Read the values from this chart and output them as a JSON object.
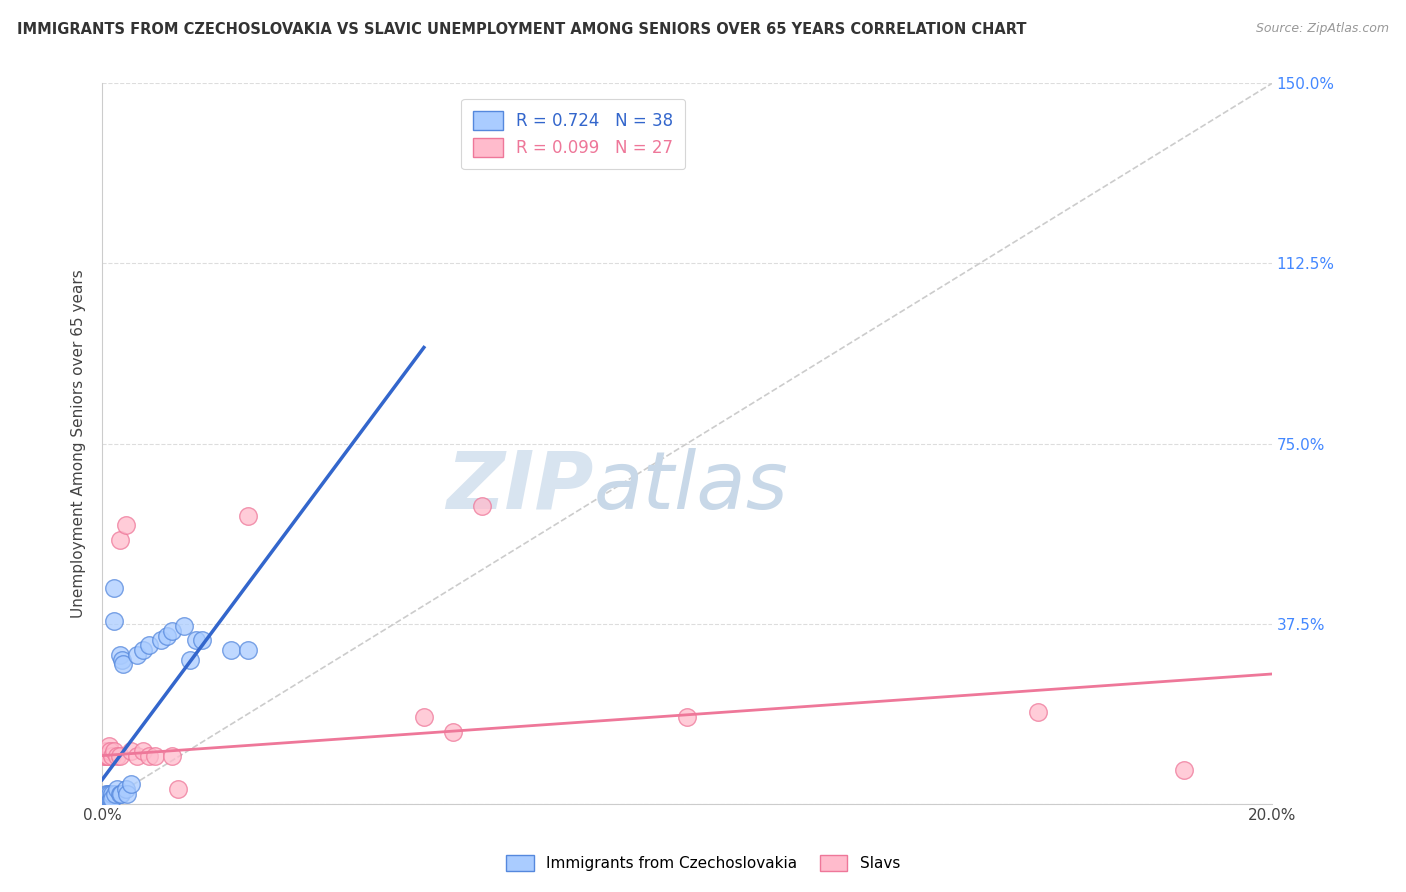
{
  "title": "IMMIGRANTS FROM CZECHOSLOVAKIA VS SLAVIC UNEMPLOYMENT AMONG SENIORS OVER 65 YEARS CORRELATION CHART",
  "source": "Source: ZipAtlas.com",
  "ylabel": "Unemployment Among Seniors over 65 years",
  "legend_label1": "Immigrants from Czechoslovakia",
  "legend_label2": "Slavs",
  "R1": 0.724,
  "N1": 38,
  "R2": 0.099,
  "N2": 27,
  "color1_face": "#AACCFF",
  "color1_edge": "#5588DD",
  "color2_face": "#FFBBCC",
  "color2_edge": "#EE7799",
  "ref_line_color": "#CCCCCC",
  "line_color1": "#3366CC",
  "line_color2": "#EE7799",
  "xlim": [
    0.0,
    0.2
  ],
  "ylim": [
    0.0,
    1.5
  ],
  "xticks": [
    0.0,
    0.05,
    0.1,
    0.15,
    0.2
  ],
  "yticks": [
    0.0,
    0.375,
    0.75,
    1.125,
    1.5
  ],
  "yticklabels_right": [
    "",
    "37.5%",
    "75.0%",
    "112.5%",
    "150.0%"
  ],
  "watermark_zip": "ZIP",
  "watermark_atlas": "atlas",
  "scatter1_x": [
    0.0003,
    0.0005,
    0.0006,
    0.0007,
    0.0008,
    0.0009,
    0.001,
    0.001,
    0.0012,
    0.0013,
    0.0014,
    0.0015,
    0.0016,
    0.0017,
    0.002,
    0.002,
    0.0022,
    0.0025,
    0.003,
    0.003,
    0.0032,
    0.0033,
    0.0035,
    0.004,
    0.0042,
    0.005,
    0.006,
    0.007,
    0.008,
    0.01,
    0.011,
    0.012,
    0.014,
    0.015,
    0.016,
    0.017,
    0.022,
    0.025
  ],
  "scatter1_y": [
    0.01,
    0.01,
    0.01,
    0.02,
    0.01,
    0.01,
    0.02,
    0.01,
    0.01,
    0.01,
    0.02,
    0.01,
    0.02,
    0.01,
    0.45,
    0.38,
    0.02,
    0.03,
    0.02,
    0.31,
    0.02,
    0.3,
    0.29,
    0.03,
    0.02,
    0.04,
    0.31,
    0.32,
    0.33,
    0.34,
    0.35,
    0.36,
    0.37,
    0.3,
    0.34,
    0.34,
    0.32,
    0.32
  ],
  "scatter2_x": [
    0.0003,
    0.0005,
    0.0006,
    0.0008,
    0.001,
    0.0012,
    0.0014,
    0.0016,
    0.002,
    0.0025,
    0.003,
    0.003,
    0.004,
    0.005,
    0.006,
    0.007,
    0.008,
    0.009,
    0.012,
    0.013,
    0.025,
    0.055,
    0.06,
    0.065,
    0.1,
    0.16,
    0.185
  ],
  "scatter2_y": [
    0.1,
    0.1,
    0.11,
    0.1,
    0.1,
    0.12,
    0.11,
    0.1,
    0.11,
    0.1,
    0.1,
    0.55,
    0.58,
    0.11,
    0.1,
    0.11,
    0.1,
    0.1,
    0.1,
    0.03,
    0.6,
    0.18,
    0.15,
    0.62,
    0.18,
    0.19,
    0.07
  ],
  "blue_line_x": [
    0.0,
    0.055
  ],
  "blue_line_y": [
    0.05,
    0.95
  ],
  "pink_line_x": [
    0.0,
    0.2
  ],
  "pink_line_y": [
    0.1,
    0.27
  ]
}
